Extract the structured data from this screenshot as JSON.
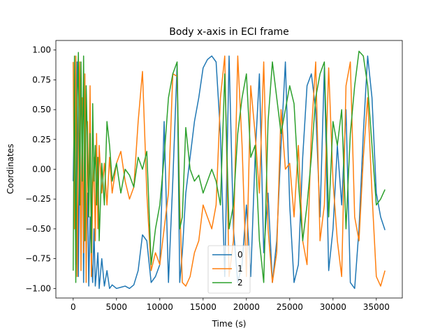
{
  "chart_data": {
    "type": "line",
    "title": "Body x-axis in ECI frame",
    "xlabel": "Time (s)",
    "ylabel": "Coordinates",
    "xlim": [
      -2000,
      38000
    ],
    "ylim": [
      -1.08,
      1.08
    ],
    "xticks": [
      0,
      5000,
      10000,
      15000,
      20000,
      25000,
      30000,
      35000
    ],
    "xtick_labels": [
      "0",
      "5000",
      "10000",
      "15000",
      "20000",
      "25000",
      "30000",
      "35000"
    ],
    "yticks": [
      -1.0,
      -0.75,
      -0.5,
      -0.25,
      0.0,
      0.25,
      0.5,
      0.75,
      1.0
    ],
    "ytick_labels": [
      "−1.00",
      "−0.75",
      "−0.50",
      "−0.25",
      "0.00",
      "0.25",
      "0.50",
      "0.75",
      "1.00"
    ],
    "grid": false,
    "legend_position": "lower-center",
    "series": [
      {
        "name": "0",
        "color": "#1f77b4",
        "x": [
          0,
          150,
          300,
          450,
          600,
          750,
          900,
          1050,
          1200,
          1350,
          1500,
          1650,
          1800,
          1950,
          2100,
          2250,
          2400,
          2550,
          2700,
          2850,
          3000,
          3300,
          3600,
          3900,
          4200,
          4500,
          5000,
          5500,
          6000,
          6500,
          7000,
          7500,
          8000,
          8500,
          9000,
          9500,
          10000,
          10500,
          11000,
          11500,
          12000,
          12300,
          12600,
          13000,
          13500,
          14000,
          14500,
          15000,
          15500,
          16000,
          16500,
          17000,
          17500,
          18000,
          18500,
          19000,
          19500,
          20000,
          20500,
          21000,
          21500,
          22000,
          22500,
          23000,
          23500,
          24000,
          24500,
          25000,
          25500,
          26000,
          26500,
          27000,
          27500,
          28000,
          28500,
          29000,
          29500,
          30000,
          30500,
          31000,
          31500,
          32000,
          32500,
          33000,
          33500,
          34000,
          34500,
          35000,
          35500,
          36000
        ],
        "y": [
          -0.1,
          0.6,
          -0.8,
          0.9,
          -0.9,
          0.3,
          -0.7,
          0.5,
          -0.95,
          0.1,
          -0.6,
          -0.2,
          -0.98,
          -0.4,
          -0.75,
          -0.95,
          -0.5,
          -0.98,
          -0.85,
          -0.7,
          -1.0,
          -0.75,
          -0.98,
          -0.85,
          -1.0,
          -0.97,
          -1.0,
          -0.99,
          -0.98,
          -1.0,
          -0.97,
          -0.85,
          -0.55,
          -0.6,
          -0.95,
          -0.9,
          -0.8,
          0.4,
          -0.95,
          -0.1,
          0.88,
          -0.95,
          -0.7,
          -0.2,
          0.1,
          0.4,
          0.6,
          0.85,
          0.92,
          0.95,
          0.9,
          0.3,
          -0.9,
          0.95,
          -0.5,
          -0.95,
          -0.8,
          -0.3,
          -0.9,
          0.1,
          0.8,
          -0.7,
          -0.2,
          -0.95,
          -0.6,
          0.2,
          0.9,
          -0.3,
          -0.95,
          -0.8,
          0.1,
          0.7,
          0.8,
          0.5,
          -0.4,
          0.85,
          -0.85,
          -0.5,
          0.2,
          -0.3,
          0.5,
          -0.95,
          -1.0,
          -0.5,
          0.3,
          0.95,
          0.6,
          -0.2,
          -0.4,
          -0.51
        ]
      },
      {
        "name": "1",
        "color": "#ff7f0e",
        "x": [
          0,
          150,
          300,
          450,
          600,
          750,
          900,
          1050,
          1200,
          1350,
          1500,
          1650,
          1800,
          1950,
          2100,
          2250,
          2400,
          2550,
          2700,
          2850,
          3000,
          3300,
          3600,
          3900,
          4200,
          4500,
          5000,
          5500,
          6000,
          6500,
          7000,
          7500,
          8000,
          8500,
          9000,
          9500,
          10000,
          10500,
          11000,
          11500,
          12000,
          12300,
          12600,
          13000,
          13500,
          14000,
          14500,
          15000,
          15500,
          16000,
          16500,
          17000,
          17500,
          18000,
          18500,
          19000,
          19500,
          20000,
          20500,
          21000,
          21500,
          22000,
          22500,
          23000,
          23500,
          24000,
          24500,
          25000,
          25500,
          26000,
          26500,
          27000,
          27500,
          28000,
          28500,
          29000,
          29500,
          30000,
          30500,
          31000,
          31500,
          32000,
          32500,
          33000,
          33500,
          34000,
          34500,
          35000,
          35500,
          36000
        ],
        "y": [
          0.9,
          -0.5,
          0.95,
          -0.9,
          0.3,
          0.9,
          -0.85,
          0.6,
          -0.7,
          0.8,
          -0.95,
          0.4,
          -0.3,
          0.7,
          -0.9,
          -0.2,
          0.1,
          -0.6,
          0.3,
          -0.5,
          0.2,
          -0.2,
          0.05,
          -0.3,
          0.1,
          -0.2,
          0.05,
          0.15,
          -0.1,
          -0.25,
          -0.15,
          0.4,
          0.82,
          -0.2,
          -0.85,
          -0.7,
          -0.8,
          -0.5,
          -0.2,
          0.8,
          0.78,
          -0.3,
          -0.95,
          -0.98,
          -0.9,
          -0.7,
          -0.6,
          -0.3,
          -0.4,
          -0.5,
          -0.3,
          0.6,
          0.95,
          -0.9,
          -0.6,
          0.95,
          0.2,
          -0.9,
          0.7,
          0.3,
          -0.2,
          0.9,
          -0.5,
          -0.95,
          -0.7,
          0.5,
          0.0,
          0.05,
          -0.4,
          0.2,
          -0.6,
          -0.8,
          0.3,
          0.9,
          -0.6,
          -0.3,
          0.85,
          -0.1,
          -0.6,
          -0.9,
          0.7,
          0.9,
          -0.4,
          -0.6,
          0.1,
          0.6,
          -0.2,
          -0.9,
          -0.98,
          -0.85
        ]
      },
      {
        "name": "2",
        "color": "#2ca02c",
        "x": [
          0,
          150,
          300,
          450,
          600,
          750,
          900,
          1050,
          1200,
          1350,
          1500,
          1650,
          1800,
          1950,
          2100,
          2250,
          2400,
          2550,
          2700,
          2850,
          3000,
          3300,
          3600,
          3900,
          4200,
          4500,
          5000,
          5500,
          6000,
          6500,
          7000,
          7500,
          8000,
          8500,
          9000,
          9500,
          10000,
          10500,
          11000,
          11500,
          12000,
          12300,
          12600,
          13000,
          13500,
          14000,
          14500,
          15000,
          15500,
          16000,
          16500,
          17000,
          17500,
          18000,
          18500,
          19000,
          19500,
          20000,
          20500,
          21000,
          21500,
          22000,
          22500,
          23000,
          23500,
          24000,
          24500,
          25000,
          25500,
          26000,
          26500,
          27000,
          27500,
          28000,
          28500,
          29000,
          29500,
          30000,
          30500,
          31000,
          31500,
          32000,
          32500,
          33000,
          33500,
          34000,
          34500,
          35000,
          35500,
          36000
        ],
        "y": [
          -0.85,
          0.95,
          -0.95,
          0.5,
          0.98,
          -0.3,
          0.9,
          -0.1,
          0.95,
          -0.6,
          0.7,
          0.2,
          -0.4,
          0.3,
          -0.7,
          0.55,
          -0.1,
          0.2,
          -0.3,
          0.1,
          -0.6,
          0.05,
          -0.3,
          0.4,
          0.2,
          -0.1,
          0.05,
          -0.2,
          0.0,
          -0.05,
          -0.15,
          0.1,
          0.0,
          0.15,
          -0.8,
          -0.5,
          -0.3,
          0.1,
          0.6,
          0.8,
          0.9,
          -0.5,
          -0.4,
          0.35,
          0.0,
          -0.1,
          -0.05,
          -0.2,
          -0.1,
          0.0,
          -0.1,
          -0.3,
          0.8,
          -0.5,
          -0.3,
          0.3,
          0.6,
          0.8,
          0.1,
          0.2,
          -0.6,
          -0.95,
          0.4,
          0.9,
          0.6,
          0.3,
          0.5,
          0.7,
          0.55,
          -0.1,
          -0.6,
          -0.3,
          0.1,
          0.6,
          0.8,
          0.9,
          -0.4,
          0.4,
          0.2,
          0.5,
          -0.5,
          0.3,
          0.7,
          0.99,
          0.95,
          0.7,
          0.2,
          -0.3,
          -0.25,
          -0.17
        ]
      }
    ]
  }
}
